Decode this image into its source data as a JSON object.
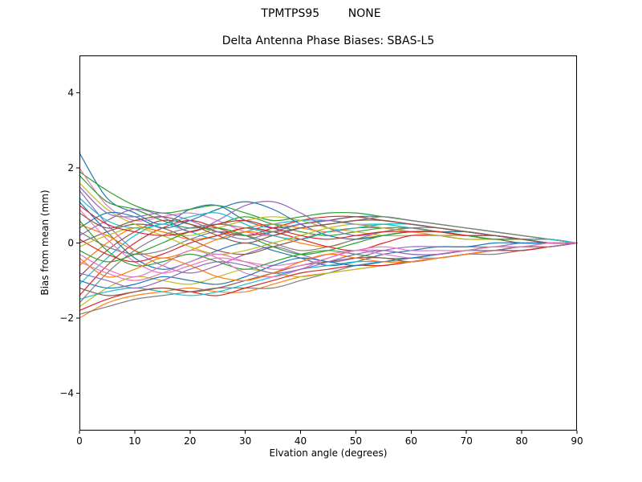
{
  "titles": {
    "suptitle": "TPMTPS95        NONE"
  },
  "chart_data": {
    "type": "line",
    "title": "Delta Antenna Phase Biases: SBAS-L5",
    "xlabel": "Elvation angle (degrees)",
    "ylabel": "Bias from mean (mm)",
    "xlim": [
      0,
      90
    ],
    "ylim": [
      -5,
      5
    ],
    "x_ticks": [
      0,
      10,
      20,
      30,
      40,
      50,
      60,
      70,
      80,
      90
    ],
    "y_ticks": [
      -4,
      -2,
      0,
      2,
      4
    ],
    "grid": false,
    "legend": "none",
    "background": "#ffffff",
    "frame_color": "#000000",
    "colors": [
      "#1f77b4",
      "#ff7f0e",
      "#2ca02c",
      "#d62728",
      "#9467bd",
      "#8c564b",
      "#e377c2",
      "#7f7f7f",
      "#bcbd22",
      "#17becf"
    ],
    "x": [
      0,
      5,
      10,
      15,
      20,
      25,
      30,
      35,
      40,
      45,
      50,
      55,
      60,
      65,
      70,
      75,
      80,
      85,
      90
    ],
    "series": [
      [
        2.4,
        1.2,
        0.8,
        0.5,
        0.9,
        1.0,
        0.6,
        0.4,
        0.5,
        0.6,
        0.7,
        0.7,
        0.6,
        0.5,
        0.4,
        0.3,
        0.2,
        0.1,
        0
      ],
      [
        -2.0,
        -1.6,
        -1.4,
        -1.3,
        -1.2,
        -1.3,
        -1.3,
        -1.1,
        -0.9,
        -0.8,
        -0.7,
        -0.6,
        -0.5,
        -0.4,
        -0.3,
        -0.2,
        -0.2,
        -0.1,
        0
      ],
      [
        1.9,
        1.4,
        1.0,
        0.8,
        0.9,
        1.0,
        0.8,
        0.6,
        0.7,
        0.8,
        0.8,
        0.7,
        0.6,
        0.5,
        0.4,
        0.3,
        0.2,
        0.1,
        0
      ],
      [
        -1.4,
        -0.6,
        0,
        0.4,
        0.6,
        0.4,
        0.2,
        0.4,
        0.6,
        0.7,
        0.7,
        0.6,
        0.5,
        0.4,
        0.3,
        0.2,
        0.1,
        0.1,
        0
      ],
      [
        1.4,
        0.5,
        -0.2,
        -0.6,
        -0.8,
        -0.6,
        -0.3,
        -0.1,
        -0.3,
        -0.5,
        -0.4,
        -0.2,
        -0.1,
        -0.1,
        -0.1,
        -0.1,
        0,
        0,
        0
      ],
      [
        0,
        0.3,
        0.5,
        0.4,
        0.1,
        -0.2,
        -0.3,
        -0.1,
        0.1,
        0.3,
        0.4,
        0.4,
        0.3,
        0.2,
        0.1,
        0.1,
        0,
        0,
        0
      ],
      [
        2.0,
        1.0,
        0.6,
        0.7,
        0.8,
        0.6,
        0.3,
        0.2,
        0.4,
        0.5,
        0.6,
        0.6,
        0.5,
        0.4,
        0.3,
        0.2,
        0.1,
        0.1,
        0
      ],
      [
        -1.9,
        -1.7,
        -1.5,
        -1.4,
        -1.3,
        -1.2,
        -1.2,
        -1.2,
        -1.0,
        -0.8,
        -0.6,
        -0.5,
        -0.4,
        -0.4,
        -0.3,
        -0.3,
        -0.2,
        -0.1,
        0
      ],
      [
        -1.7,
        -1.2,
        -0.9,
        -1.0,
        -1.1,
        -0.9,
        -0.7,
        -0.8,
        -0.9,
        -0.8,
        -0.7,
        -0.6,
        -0.5,
        -0.4,
        -0.3,
        -0.2,
        -0.1,
        -0.1,
        0
      ],
      [
        -1.1,
        -0.4,
        0.2,
        0.5,
        0.3,
        0.1,
        0.3,
        0.5,
        0.6,
        0.6,
        0.5,
        0.5,
        0.4,
        0.3,
        0.2,
        0.2,
        0.1,
        0,
        0
      ],
      [
        1.1,
        0.3,
        -0.4,
        -0.7,
        -0.5,
        -0.2,
        0,
        -0.2,
        -0.4,
        -0.6,
        -0.5,
        -0.3,
        -0.2,
        -0.1,
        -0.1,
        0,
        0,
        0,
        0
      ],
      [
        0.5,
        0.2,
        -0.2,
        -0.4,
        -0.2,
        0.1,
        0.3,
        0.2,
        0,
        -0.1,
        0.1,
        0.2,
        0.3,
        0.3,
        0.2,
        0.1,
        0.1,
        0,
        0
      ],
      [
        1.8,
        1.1,
        0.9,
        0.6,
        0.4,
        0.5,
        0.7,
        0.5,
        0.3,
        0.2,
        0.3,
        0.4,
        0.4,
        0.3,
        0.3,
        0.2,
        0.1,
        0.1,
        0
      ],
      [
        -1.8,
        -1.5,
        -1.3,
        -1.2,
        -1.3,
        -1.4,
        -1.2,
        -1.0,
        -0.8,
        -0.7,
        -0.6,
        -0.6,
        -0.5,
        -0.4,
        -0.3,
        -0.2,
        -0.2,
        -0.1,
        0
      ],
      [
        0.2,
        0.6,
        0.9,
        0.7,
        0.3,
        0.6,
        1.0,
        1.1,
        0.8,
        0.4,
        0.2,
        0.3,
        0.4,
        0.4,
        0.3,
        0.2,
        0.1,
        0.1,
        0
      ],
      [
        -0.9,
        -0.2,
        0.3,
        0.6,
        0.5,
        0.3,
        0.2,
        0.3,
        0.5,
        0.6,
        0.7,
        0.6,
        0.5,
        0.4,
        0.3,
        0.2,
        0.1,
        0.1,
        0
      ],
      [
        0.9,
        0.1,
        -0.5,
        -0.8,
        -0.6,
        -0.4,
        -0.5,
        -0.6,
        -0.5,
        -0.3,
        -0.2,
        -0.2,
        -0.3,
        -0.3,
        -0.2,
        -0.1,
        -0.1,
        0,
        0
      ],
      [
        0.3,
        -0.1,
        -0.3,
        -0.2,
        0.1,
        0.3,
        0.2,
        0,
        -0.2,
        -0.1,
        0.1,
        0.3,
        0.4,
        0.3,
        0.2,
        0.2,
        0.1,
        0,
        0
      ],
      [
        1.6,
        0.9,
        0.5,
        0.3,
        0.2,
        0.4,
        0.6,
        0.7,
        0.6,
        0.4,
        0.3,
        0.2,
        0.2,
        0.2,
        0.1,
        0.1,
        0.1,
        0,
        0
      ],
      [
        -1.5,
        -1.3,
        -1.2,
        -1.3,
        -1.4,
        -1.3,
        -1.1,
        -0.9,
        -0.7,
        -0.6,
        -0.5,
        -0.5,
        -0.5,
        -0.4,
        -0.3,
        -0.2,
        -0.1,
        -0.1,
        0
      ],
      [
        0.4,
        0.8,
        0.7,
        0.4,
        0.6,
        0.9,
        1.1,
        0.9,
        0.5,
        0.2,
        0.1,
        0.2,
        0.3,
        0.3,
        0.3,
        0.2,
        0.1,
        0,
        0
      ],
      [
        -0.6,
        0,
        0.4,
        0.3,
        0.1,
        0.2,
        0.4,
        0.5,
        0.4,
        0.3,
        0.4,
        0.5,
        0.5,
        0.4,
        0.3,
        0.2,
        0.1,
        0,
        0
      ],
      [
        0.6,
        -0.2,
        -0.6,
        -0.5,
        -0.3,
        -0.5,
        -0.7,
        -0.5,
        -0.3,
        -0.2,
        -0.3,
        -0.4,
        -0.4,
        -0.3,
        -0.2,
        -0.1,
        -0.1,
        0,
        0
      ],
      [
        0.1,
        -0.3,
        -0.5,
        -0.3,
        0,
        0.2,
        0.4,
        0.3,
        0.1,
        -0.1,
        -0.2,
        0,
        0.2,
        0.2,
        0.2,
        0.1,
        0.1,
        0,
        0
      ],
      [
        1.5,
        0.8,
        0.7,
        0.8,
        0.6,
        0.3,
        0.1,
        0.3,
        0.5,
        0.6,
        0.5,
        0.4,
        0.3,
        0.2,
        0.2,
        0.1,
        0.1,
        0,
        0
      ],
      [
        -1.2,
        -1.4,
        -1.3,
        -1.2,
        -1.3,
        -1.2,
        -1.0,
        -0.8,
        -0.6,
        -0.5,
        -0.4,
        -0.4,
        -0.5,
        -0.4,
        -0.3,
        -0.2,
        -0.1,
        -0.1,
        0
      ],
      [
        -0.3,
        -0.7,
        -0.9,
        -0.6,
        -0.2,
        -0.4,
        -0.8,
        -0.9,
        -0.7,
        -0.4,
        -0.2,
        -0.3,
        -0.4,
        -0.4,
        -0.3,
        -0.2,
        -0.1,
        -0.1,
        0
      ],
      [
        -1.6,
        -0.8,
        -0.2,
        0.2,
        0.4,
        0.5,
        0.4,
        0.3,
        0.4,
        0.5,
        0.6,
        0.7,
        0.6,
        0.5,
        0.4,
        0.3,
        0.2,
        0.1,
        0
      ],
      [
        -0.1,
        0.2,
        0.4,
        0.2,
        -0.1,
        -0.3,
        -0.2,
        0,
        0.2,
        0.4,
        0.5,
        0.4,
        0.3,
        0.2,
        0.2,
        0.1,
        0.1,
        0,
        0
      ],
      [
        1.2,
        0.6,
        0.4,
        0.5,
        0.7,
        0.8,
        0.5,
        0.2,
        0.1,
        0.3,
        0.4,
        0.5,
        0.5,
        0.4,
        0.3,
        0.2,
        0.1,
        0.1,
        0
      ],
      [
        -1.0,
        -1.2,
        -1.1,
        -0.9,
        -1.0,
        -1.1,
        -0.9,
        -0.6,
        -0.4,
        -0.5,
        -0.6,
        -0.5,
        -0.4,
        -0.3,
        -0.2,
        -0.2,
        -0.1,
        -0.1,
        0
      ],
      [
        -0.4,
        -0.9,
        -0.7,
        -0.4,
        -0.6,
        -0.9,
        -1.0,
        -0.8,
        -0.5,
        -0.3,
        -0.4,
        -0.5,
        -0.5,
        -0.4,
        -0.3,
        -0.2,
        -0.1,
        -0.1,
        0
      ],
      [
        -0.2,
        -0.5,
        -0.3,
        0,
        0.3,
        0.4,
        0.2,
        -0.1,
        -0.3,
        -0.2,
        0,
        0.2,
        0.3,
        0.3,
        0.2,
        0.1,
        0.1,
        0,
        0
      ],
      [
        1.0,
        0.5,
        0.3,
        0.2,
        0.3,
        0.5,
        0.6,
        0.4,
        0.2,
        0.1,
        0.2,
        0.3,
        0.3,
        0.3,
        0.2,
        0.2,
        0.1,
        0,
        0
      ],
      [
        -0.8,
        -1.0,
        -1.2,
        -1.0,
        -0.7,
        -0.5,
        -0.6,
        -0.8,
        -0.7,
        -0.5,
        -0.3,
        -0.2,
        -0.3,
        -0.3,
        -0.2,
        -0.2,
        -0.1,
        -0.1,
        0
      ],
      [
        0.8,
        0.4,
        0.6,
        0.7,
        0.5,
        0.2,
        0,
        0.2,
        0.4,
        0.5,
        0.6,
        0.6,
        0.5,
        0.4,
        0.3,
        0.2,
        0.1,
        0,
        0
      ],
      [
        -0.5,
        -0.8,
        -1.0,
        -0.8,
        -0.5,
        -0.3,
        -0.5,
        -0.7,
        -0.6,
        -0.4,
        -0.2,
        -0.1,
        -0.2,
        -0.2,
        -0.2,
        -0.1,
        -0.1,
        0,
        0
      ]
    ]
  }
}
